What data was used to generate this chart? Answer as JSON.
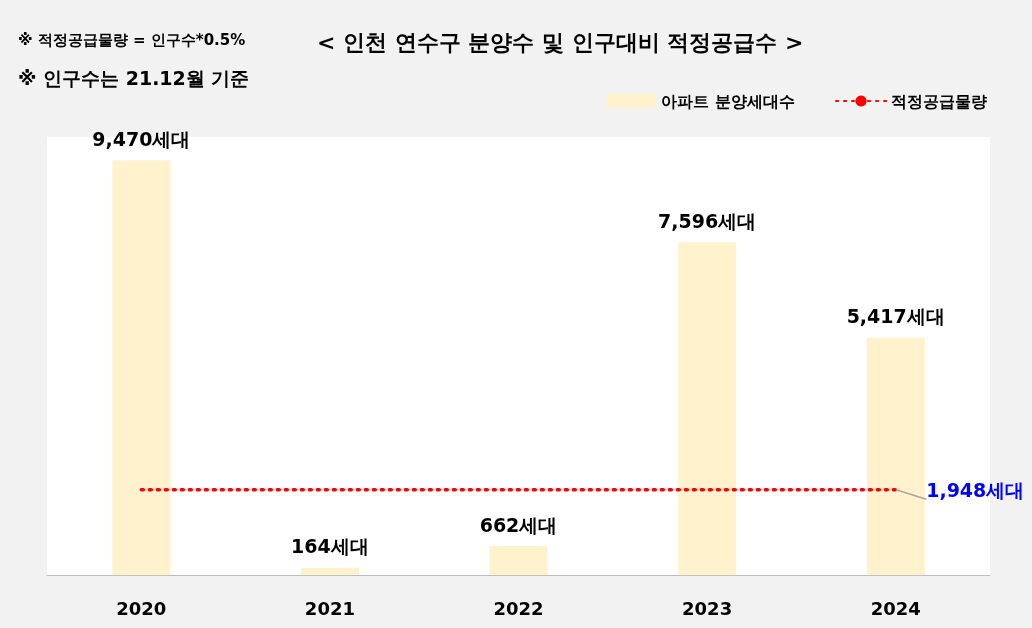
{
  "chart_data": {
    "type": "bar",
    "title": "< 인천 연수구 분양수 및 인구대비 적정공급수 >",
    "annotations": [
      "※ 적정공급물량 = 인구수*0.5%",
      "※ 인구수는 21.12월 기준"
    ],
    "categories": [
      "2020",
      "2021",
      "2022",
      "2023",
      "2024"
    ],
    "series": [
      {
        "name": "아파트 분양세대수",
        "color": "#fff2cc",
        "values": [
          9470,
          164,
          662,
          7596,
          5417
        ],
        "value_labels": [
          "9,470세대",
          "164세대",
          "662세대",
          "7,596세대",
          "5,417세대"
        ]
      },
      {
        "name": "적정공급물량",
        "type": "line",
        "color": "#ff0000",
        "line_style": "dotted",
        "marker": "none",
        "values": [
          1948,
          1948,
          1948,
          1948,
          1948
        ],
        "value_labels": [
          null,
          null,
          null,
          null,
          "1,948세대"
        ]
      }
    ],
    "legend": "top right"
  }
}
